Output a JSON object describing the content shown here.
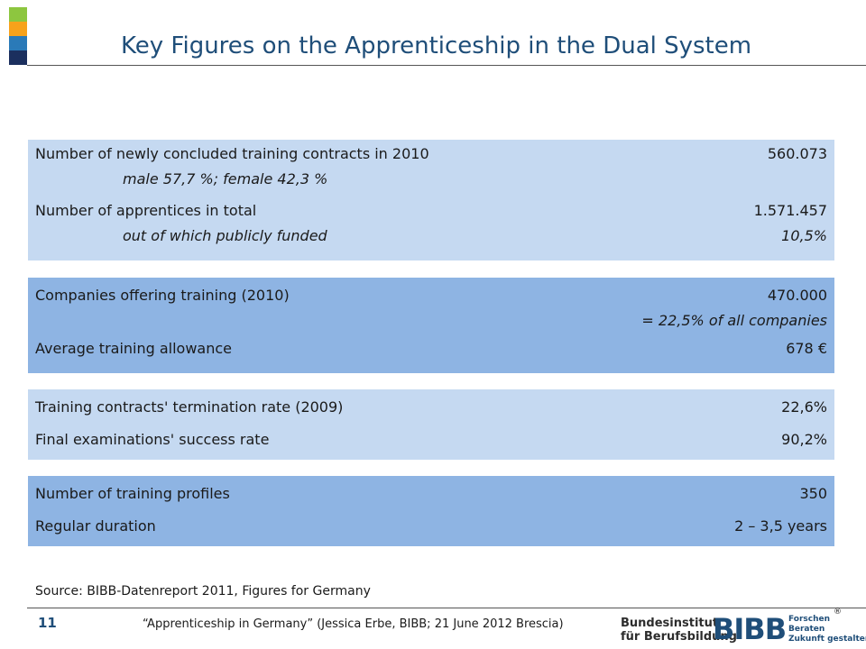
{
  "title": "Key Figures on the Apprenticeship in the Dual System",
  "box1": {
    "r1_label": "Number of newly concluded training contracts in 2010",
    "r1_value": "560.073",
    "r2_label": "male 57,7 %;  female 42,3 %",
    "r3_label": "Number of apprentices in total",
    "r3_value": "1.571.457",
    "r4_label": "out of which publicly funded",
    "r4_value": "10,5%"
  },
  "box2": {
    "r1_label": "Companies offering training (2010)",
    "r1_value": "470.000",
    "r2_value": "= 22,5% of all companies",
    "r3_label": "Average training allowance",
    "r3_value": "678 €"
  },
  "box3": {
    "r1_label": "Training contracts' termination rate (2009)",
    "r1_value": "22,6%",
    "r2_label": "Final examinations' success rate",
    "r2_value": "90,2%"
  },
  "box4": {
    "r1_label": "Number of training profiles",
    "r1_value": "350",
    "r2_label": "Regular duration",
    "r2_value": "2 – 3,5 years"
  },
  "source": "Source: BIBB-Datenreport 2011, Figures for Germany",
  "footer": {
    "page_number": "11",
    "text": "“Apprenticeship in Germany” (Jessica Erbe, BIBB; 21 June 2012 Brescia)"
  },
  "logo": {
    "line1": "Bundesinstitut",
    "line2": "für Berufsbildung",
    "mark": "BIBB",
    "tag1": "Forschen",
    "tag2": "Beraten",
    "tag3": "Zukunft gestalten",
    "registered": "®"
  },
  "colors": {
    "title": "#1f4e79",
    "box_light": "#c5d9f1",
    "box_dark": "#8eb4e3"
  }
}
